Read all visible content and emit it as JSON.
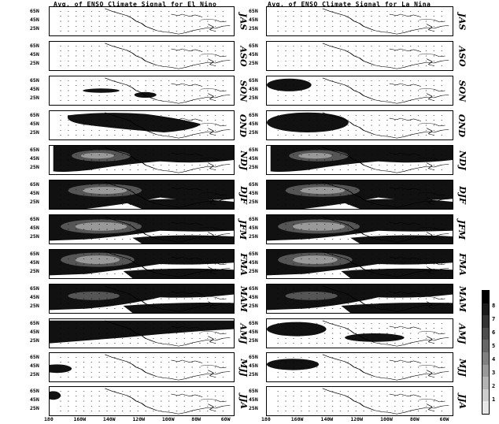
{
  "columns": [
    {
      "title": "Avg. of ENSO Climate Signal for El Nino"
    },
    {
      "title": "Avg. of ENSO Climate Signal for La Nina"
    }
  ],
  "seasons": [
    "JAS",
    "ASO",
    "SON",
    "OND",
    "NDJ",
    "DJF",
    "JFM",
    "FMA",
    "MAM",
    "AMJ",
    "MJJ",
    "JJA"
  ],
  "lat_labels": [
    "65N",
    "45N",
    "25N"
  ],
  "lon_labels": [
    "180",
    "160W",
    "140W",
    "120W",
    "100W",
    "80W",
    "60W"
  ],
  "colorbar": {
    "labels": [
      "8",
      "7",
      "6",
      "5",
      "4",
      "3",
      "2",
      "1"
    ],
    "colors": [
      "#000000",
      "#1a1a1a",
      "#333333",
      "#4d4d4d",
      "#666666",
      "#808080",
      "#999999",
      "#b3b3b3",
      "#cccccc",
      "#e6e6e6"
    ]
  }
}
